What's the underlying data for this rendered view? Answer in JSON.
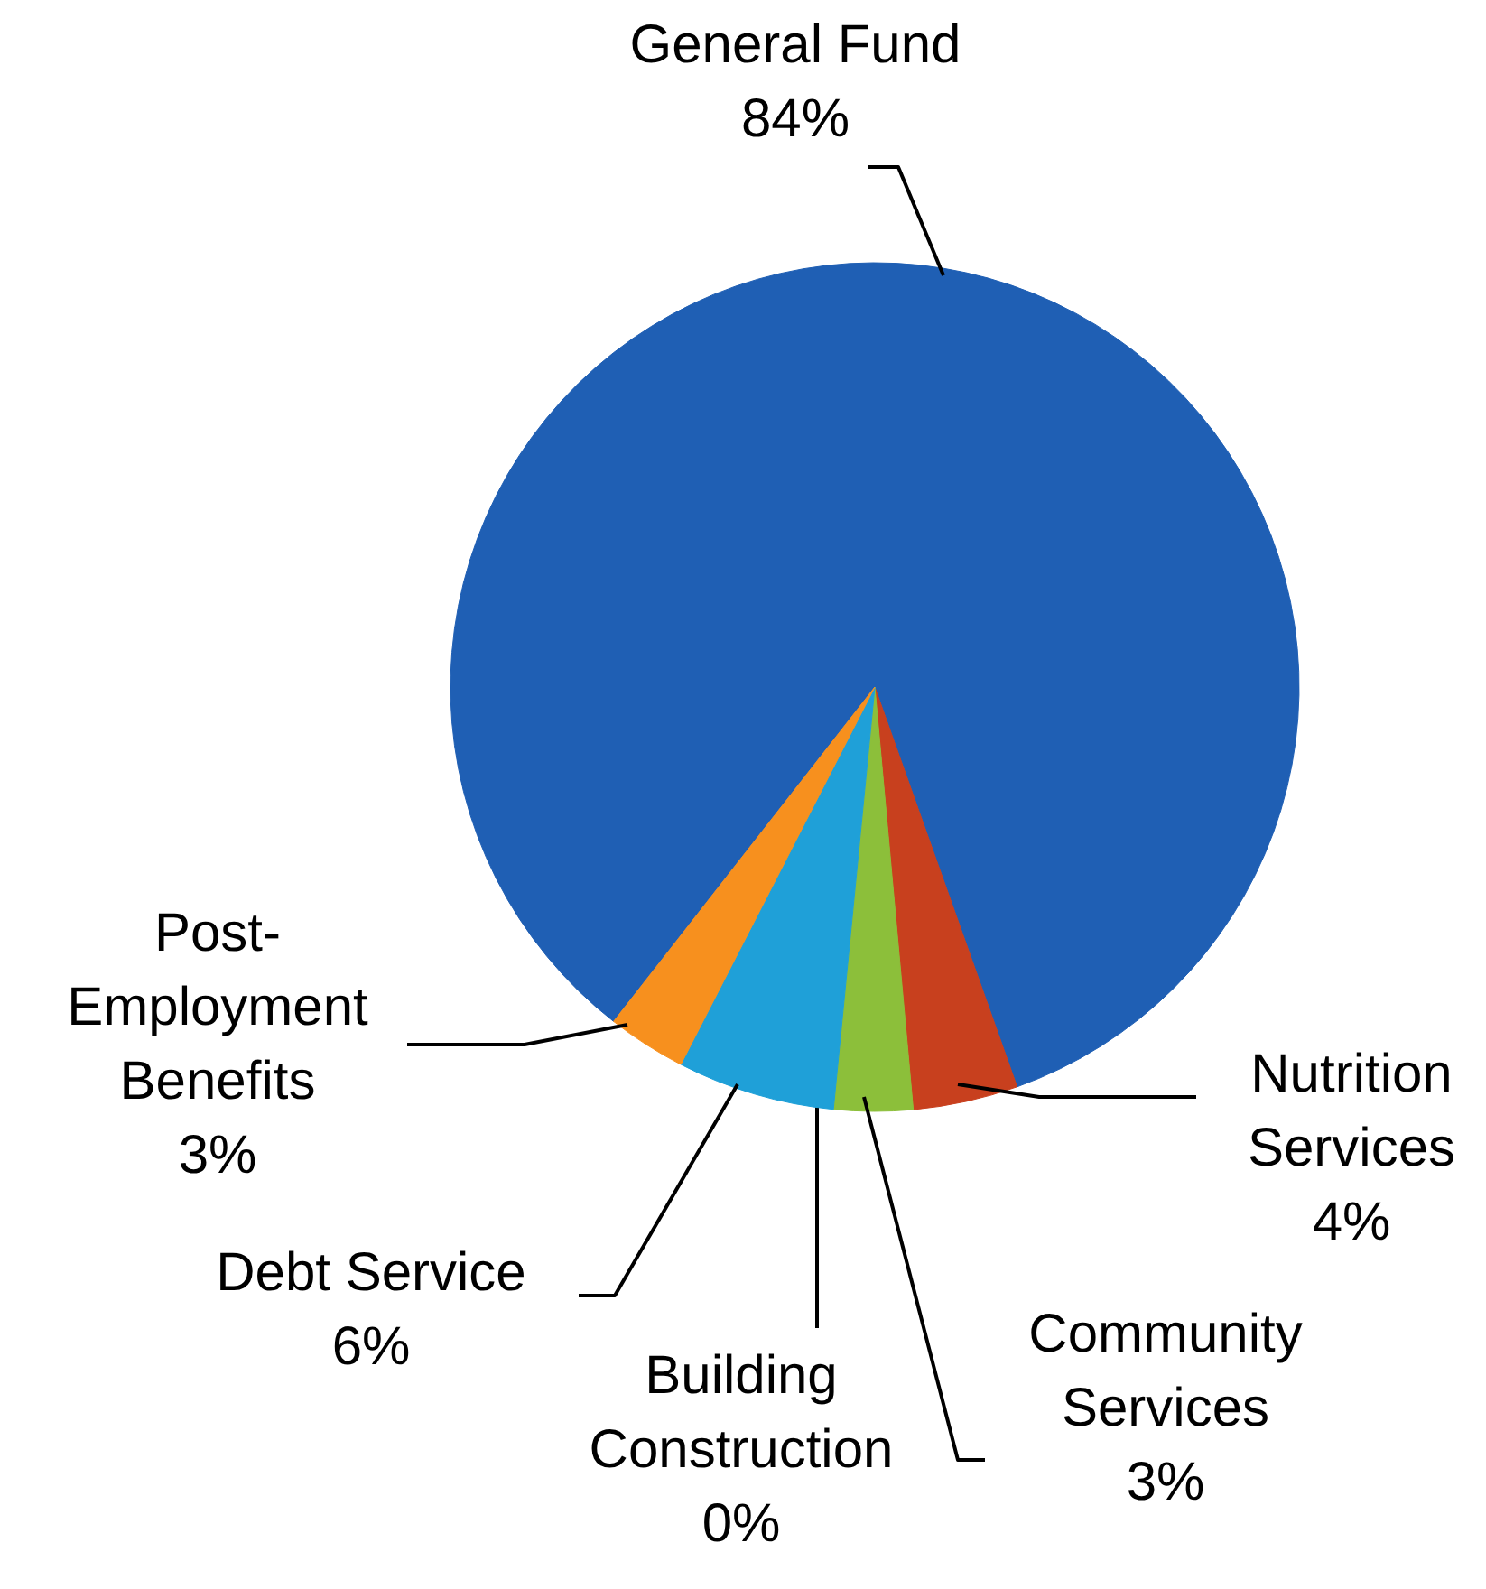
{
  "chart_data": {
    "type": "pie",
    "categories": [
      "General Fund",
      "Nutrition Services",
      "Community Services",
      "Building Construction",
      "Debt Service",
      "Post-Employment Benefits"
    ],
    "values": [
      84,
      4,
      3,
      0,
      6,
      3
    ],
    "value_labels": [
      "84%",
      "4%",
      "3%",
      "0%",
      "6%",
      "3%"
    ],
    "colors": [
      "#1f5fb4",
      "#c8401e",
      "#8cbf3a",
      "#7f7f7f",
      "#1fa0d8",
      "#f7901e"
    ],
    "legend": false
  }
}
